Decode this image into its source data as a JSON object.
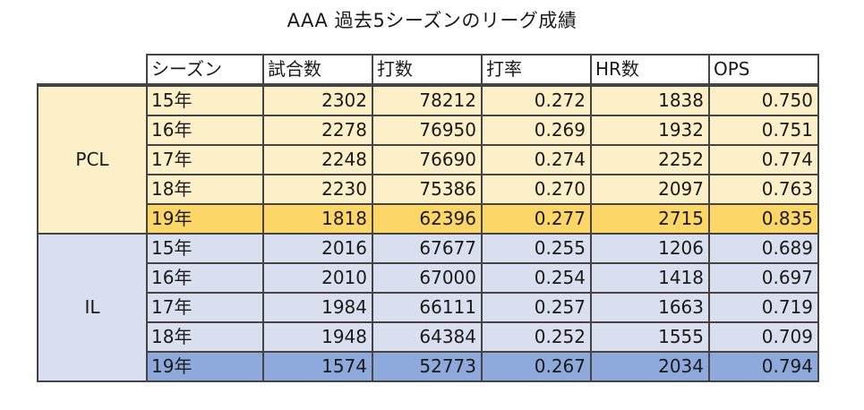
{
  "title": "AAA 過去5シーズンのリーグ成績",
  "columns": [
    "シーズン",
    "試合数",
    "打数",
    "打率",
    "HR数",
    "OPS"
  ],
  "leagues": [
    {
      "name": "PCL",
      "highlight_color": "#fcd666",
      "row_color": "#fdefc8",
      "rows": [
        {
          "season": "15年",
          "games": "2302",
          "at_bats": "78212",
          "avg": "0.272",
          "hr": "1838",
          "ops": "0.750"
        },
        {
          "season": "16年",
          "games": "2278",
          "at_bats": "76950",
          "avg": "0.269",
          "hr": "1932",
          "ops": "0.751"
        },
        {
          "season": "17年",
          "games": "2248",
          "at_bats": "76690",
          "avg": "0.274",
          "hr": "2252",
          "ops": "0.774"
        },
        {
          "season": "18年",
          "games": "2230",
          "at_bats": "75386",
          "avg": "0.270",
          "hr": "2097",
          "ops": "0.763"
        },
        {
          "season": "19年",
          "games": "1818",
          "at_bats": "62396",
          "avg": "0.277",
          "hr": "2715",
          "ops": "0.835"
        }
      ]
    },
    {
      "name": "IL",
      "highlight_color": "#8ea9db",
      "row_color": "#dadff0",
      "rows": [
        {
          "season": "15年",
          "games": "2016",
          "at_bats": "67677",
          "avg": "0.255",
          "hr": "1206",
          "ops": "0.689"
        },
        {
          "season": "16年",
          "games": "2010",
          "at_bats": "67000",
          "avg": "0.254",
          "hr": "1418",
          "ops": "0.697"
        },
        {
          "season": "17年",
          "games": "1984",
          "at_bats": "66111",
          "avg": "0.257",
          "hr": "1663",
          "ops": "0.719"
        },
        {
          "season": "18年",
          "games": "1948",
          "at_bats": "64384",
          "avg": "0.252",
          "hr": "1555",
          "ops": "0.709"
        },
        {
          "season": "19年",
          "games": "1574",
          "at_bats": "52773",
          "avg": "0.267",
          "hr": "2034",
          "ops": "0.794"
        }
      ]
    }
  ]
}
